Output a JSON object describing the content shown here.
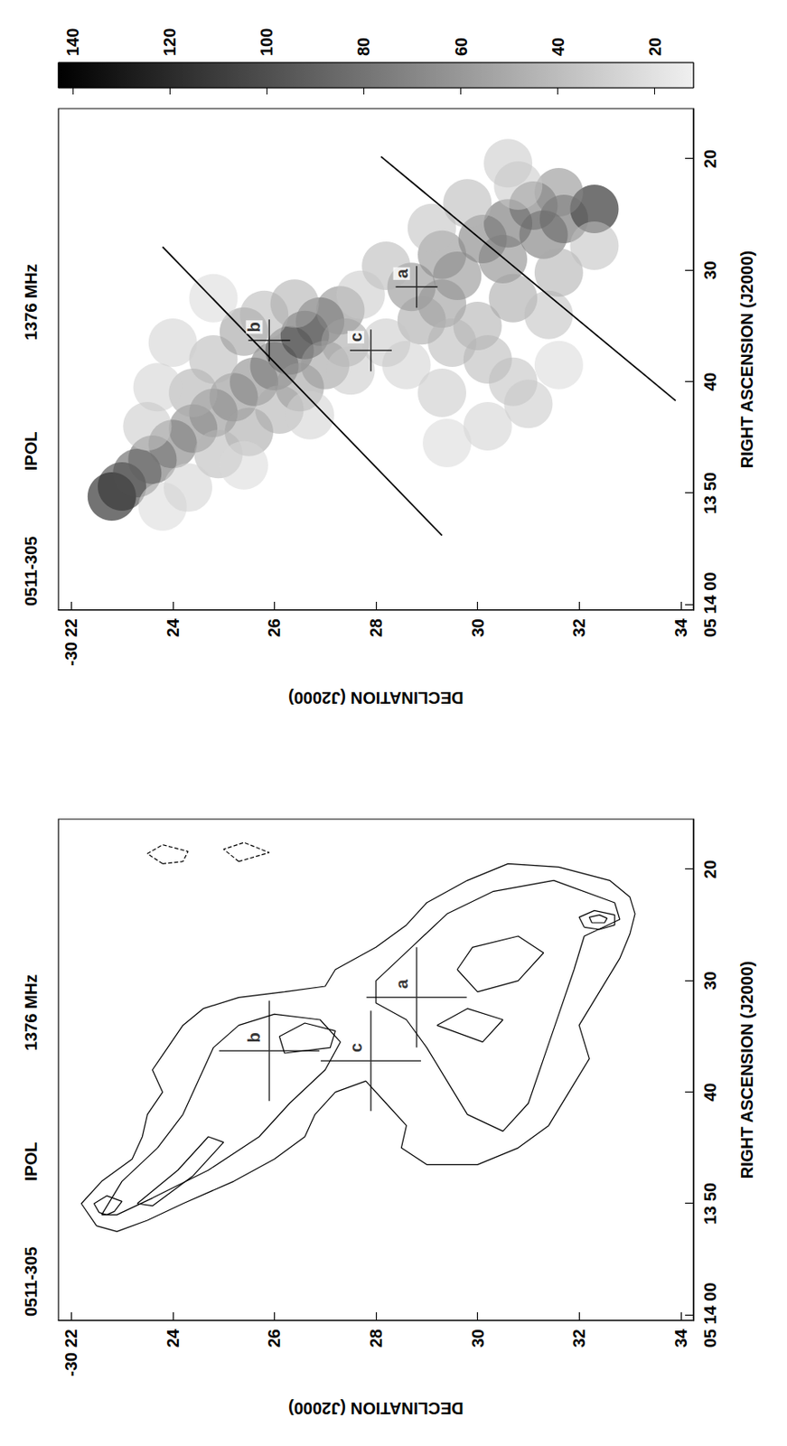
{
  "chart_data": [
    {
      "type": "contour",
      "title": [
        "0511-305",
        "IPOL",
        "1376 MHz"
      ],
      "xlabel": "RIGHT ASCENSION (J2000)",
      "ylabel": "DECLINATION (J2000)",
      "xlim": [
        15.5,
        60.5
      ],
      "xticks": [
        {
          "value": 60,
          "label": "05 14 00"
        },
        {
          "value": 50,
          "label": "13 50"
        },
        40,
        30,
        20
      ],
      "ylim": [
        21.75,
        34.25
      ],
      "yticks": [
        {
          "value": 22,
          "label": "-30 22"
        },
        24,
        26,
        28,
        30,
        32,
        34
      ],
      "grid": false,
      "contours": [
        {
          "line_style": "solid",
          "points": [
            [
              52.0,
              22.5
            ],
            [
              50,
              22.2
            ],
            [
              48,
              22.6
            ],
            [
              46,
              23.2
            ],
            [
              44,
              23.4
            ],
            [
              42,
              23.5
            ],
            [
              40,
              23.8
            ],
            [
              38,
              23.6
            ],
            [
              36,
              23.9
            ],
            [
              34,
              24.2
            ],
            [
              32.5,
              24.6
            ],
            [
              31.5,
              25.3
            ],
            [
              31,
              26.2
            ],
            [
              30.5,
              27.0
            ],
            [
              29,
              27.2
            ],
            [
              27,
              28.0
            ],
            [
              25,
              28.6
            ],
            [
              23,
              29.0
            ],
            [
              21,
              29.8
            ],
            [
              19.5,
              30.6
            ],
            [
              19.8,
              31.6
            ],
            [
              21,
              32.6
            ],
            [
              22.5,
              33.0
            ],
            [
              24,
              33.1
            ],
            [
              25.8,
              33.0
            ],
            [
              28,
              32.8
            ],
            [
              31,
              32.4
            ],
            [
              34,
              32.0
            ],
            [
              37,
              32.2
            ],
            [
              40,
              31.8
            ],
            [
              43,
              31.4
            ],
            [
              45,
              30.8
            ],
            [
              46.5,
              30.0
            ],
            [
              46.5,
              29.0
            ],
            [
              45,
              28.5
            ],
            [
              43,
              28.6
            ],
            [
              41,
              28.2
            ],
            [
              39,
              27.8
            ],
            [
              40,
              27.2
            ],
            [
              42,
              26.8
            ],
            [
              44,
              26.6
            ],
            [
              46,
              26.0
            ],
            [
              48,
              25.2
            ],
            [
              50,
              24.2
            ],
            [
              51.5,
              23.5
            ],
            [
              52.5,
              22.9
            ]
          ]
        },
        {
          "line_style": "solid",
          "points": [
            [
              51,
              22.6
            ],
            [
              48,
              23.0
            ],
            [
              45,
              23.7
            ],
            [
              42,
              24.2
            ],
            [
              39,
              24.5
            ],
            [
              36,
              24.8
            ],
            [
              34,
              25.3
            ],
            [
              33,
              26.0
            ],
            [
              33.5,
              26.9
            ],
            [
              35.5,
              27.3
            ],
            [
              38,
              27.0
            ],
            [
              41,
              26.3
            ],
            [
              44,
              25.7
            ],
            [
              47,
              24.7
            ],
            [
              49.5,
              23.6
            ],
            [
              51,
              22.9
            ]
          ]
        },
        {
          "line_style": "solid",
          "points": [
            [
              21,
              31.5
            ],
            [
              22,
              30.3
            ],
            [
              24,
              29.4
            ],
            [
              27,
              28.7
            ],
            [
              30,
              28.0
            ],
            [
              32,
              28.0
            ],
            [
              33.5,
              28.6
            ],
            [
              36,
              29.0
            ],
            [
              39,
              29.4
            ],
            [
              42,
              29.8
            ],
            [
              43.5,
              30.5
            ],
            [
              41,
              31.0
            ],
            [
              37,
              31.3
            ],
            [
              33,
              31.6
            ],
            [
              29,
              31.9
            ],
            [
              26,
              32.1
            ],
            [
              24.5,
              32.8
            ],
            [
              23,
              32.7
            ]
          ]
        },
        {
          "line_style": "solid",
          "points": [
            [
              50.8,
              22.55
            ],
            [
              50.0,
              22.45
            ],
            [
              49.3,
              22.7
            ],
            [
              49.8,
              23.0
            ],
            [
              50.7,
              22.85
            ],
            [
              51,
              22.7
            ]
          ]
        },
        {
          "line_style": "solid",
          "points": [
            [
              25.2,
              32.1
            ],
            [
              24.3,
              32.0
            ],
            [
              23.7,
              32.3
            ],
            [
              24.1,
              32.7
            ],
            [
              25.0,
              32.7
            ],
            [
              25.4,
              32.4
            ]
          ]
        },
        {
          "line_style": "solid",
          "points": [
            [
              24.8,
              32.25
            ],
            [
              24.3,
              32.2
            ],
            [
              24.1,
              32.4
            ],
            [
              24.4,
              32.55
            ],
            [
              24.8,
              32.5
            ]
          ]
        },
        {
          "line_style": "solid",
          "points": [
            [
              36.5,
              26.2
            ],
            [
              35,
              26.1
            ],
            [
              33.8,
              26.6
            ],
            [
              34.5,
              27.2
            ],
            [
              36,
              27.1
            ]
          ]
        },
        {
          "line_style": "solid",
          "points": [
            [
              50,
              23.3
            ],
            [
              47,
              24.1
            ],
            [
              44,
              24.7
            ],
            [
              44.5,
              25.0
            ],
            [
              47.5,
              24.4
            ],
            [
              50.2,
              23.6
            ]
          ]
        },
        {
          "line_style": "solid",
          "points": [
            [
              29,
              29.6
            ],
            [
              27,
              29.9
            ],
            [
              26,
              30.8
            ],
            [
              27.5,
              31.3
            ],
            [
              30,
              30.8
            ],
            [
              31,
              30.0
            ]
          ]
        },
        {
          "line_style": "solid",
          "points": [
            [
              34,
              29.2
            ],
            [
              32.5,
              29.8
            ],
            [
              33.5,
              30.5
            ],
            [
              35.5,
              30.1
            ]
          ]
        },
        {
          "line_style": "dashed",
          "points": [
            [
              19.5,
              23.8
            ],
            [
              18.6,
              23.5
            ],
            [
              17.8,
              23.8
            ],
            [
              18.4,
              24.3
            ],
            [
              19.3,
              24.2
            ]
          ]
        },
        {
          "line_style": "dashed",
          "points": [
            [
              19.3,
              25.3
            ],
            [
              18.2,
              25.0
            ],
            [
              17.6,
              25.4
            ],
            [
              18.5,
              25.9
            ]
          ]
        }
      ],
      "markers": [
        {
          "label": "a",
          "x": 31.5,
          "y": 28.8
        },
        {
          "label": "b",
          "x": 36.3,
          "y": 25.9
        },
        {
          "label": "c",
          "x": 37.2,
          "y": 27.9
        }
      ]
    },
    {
      "type": "image",
      "title": [
        "0511-305",
        "IPOL",
        "1376 MHz"
      ],
      "xlabel": "RIGHT ASCENSION (J2000)",
      "ylabel": "DECLINATION (J2000)",
      "xlim": [
        15.5,
        60.5
      ],
      "xticks": [
        {
          "value": 60,
          "label": "05 14 00"
        },
        {
          "value": 50,
          "label": "13 50"
        },
        40,
        30,
        20
      ],
      "ylim": [
        21.75,
        34.25
      ],
      "yticks": [
        {
          "value": 22,
          "label": "-30 22"
        },
        24,
        26,
        28,
        30,
        32,
        34
      ],
      "grid": false,
      "emission": [
        [
          50.3,
          22.8,
          145
        ],
        [
          49.4,
          23.0,
          120
        ],
        [
          48.2,
          23.3,
          100
        ],
        [
          47,
          23.6,
          90
        ],
        [
          45.6,
          24.0,
          80
        ],
        [
          44.2,
          24.4,
          75
        ],
        [
          42.8,
          24.8,
          70
        ],
        [
          41.4,
          25.2,
          70
        ],
        [
          40,
          25.6,
          75
        ],
        [
          38.6,
          26.0,
          80
        ],
        [
          37.2,
          26.3,
          90
        ],
        [
          35.8,
          26.6,
          110
        ],
        [
          34.6,
          26.9,
          95
        ],
        [
          33.6,
          27.3,
          70
        ],
        [
          44.5,
          25.5,
          55
        ],
        [
          42.5,
          26.1,
          50
        ],
        [
          40.5,
          26.5,
          60
        ],
        [
          38.5,
          27.0,
          60
        ],
        [
          36.5,
          27.4,
          55
        ],
        [
          46.5,
          24.9,
          45
        ],
        [
          41,
          24.4,
          50
        ],
        [
          38,
          24.8,
          45
        ],
        [
          35.5,
          25.4,
          60
        ],
        [
          34,
          25.8,
          45
        ],
        [
          33,
          26.4,
          50
        ],
        [
          32.5,
          24.8,
          25
        ],
        [
          36.5,
          24.0,
          30
        ],
        [
          40.5,
          23.7,
          30
        ],
        [
          44,
          23.5,
          35
        ],
        [
          47.5,
          25.4,
          25
        ],
        [
          43,
          26.7,
          30
        ],
        [
          39,
          27.5,
          35
        ],
        [
          51.2,
          23.8,
          25
        ],
        [
          49.5,
          24.3,
          30
        ],
        [
          24.5,
          32.3,
          150
        ],
        [
          25.4,
          31.7,
          95
        ],
        [
          24.2,
          31.1,
          85
        ],
        [
          23.0,
          31.6,
          70
        ],
        [
          25.8,
          30.6,
          90
        ],
        [
          26.8,
          31.3,
          85
        ],
        [
          27.2,
          30.1,
          80
        ],
        [
          29,
          30.5,
          75
        ],
        [
          28.6,
          29.3,
          70
        ],
        [
          30.5,
          29.6,
          70
        ],
        [
          31.5,
          28.7,
          70
        ],
        [
          33,
          29.3,
          65
        ],
        [
          34.5,
          28.9,
          55
        ],
        [
          32.5,
          30.7,
          55
        ],
        [
          35,
          30.0,
          50
        ],
        [
          36.5,
          29.5,
          45
        ],
        [
          38,
          30.2,
          45
        ],
        [
          40,
          30.7,
          40
        ],
        [
          42,
          31.0,
          35
        ],
        [
          44,
          30.2,
          30
        ],
        [
          45.5,
          29.4,
          25
        ],
        [
          41,
          29.3,
          35
        ],
        [
          38.5,
          28.6,
          30
        ],
        [
          34,
          31.4,
          40
        ],
        [
          30.2,
          31.6,
          50
        ],
        [
          27.8,
          32.3,
          40
        ],
        [
          22.4,
          30.8,
          35
        ],
        [
          29.6,
          28.2,
          45
        ],
        [
          26.2,
          29.1,
          40
        ],
        [
          24,
          29.8,
          45
        ],
        [
          32.2,
          27.7,
          35
        ],
        [
          36.5,
          28.2,
          35
        ],
        [
          20.4,
          30.6,
          35
        ],
        [
          38.5,
          31.6,
          25
        ]
      ],
      "lines": [
        [
          [
            27.9,
            23.8
          ],
          [
            53.8,
            29.3
          ]
        ],
        [
          [
            19.8,
            28.1
          ],
          [
            41.7,
            33.9
          ]
        ]
      ],
      "markers": [
        {
          "label": "a",
          "x": 31.5,
          "y": 28.8
        },
        {
          "label": "b",
          "x": 36.3,
          "y": 25.9
        },
        {
          "label": "c",
          "x": 37.2,
          "y": 27.9
        }
      ],
      "colorbar": {
        "range": [
          12,
          143
        ],
        "ticks": [
          20,
          40,
          60,
          80,
          100,
          120,
          140
        ]
      }
    }
  ]
}
